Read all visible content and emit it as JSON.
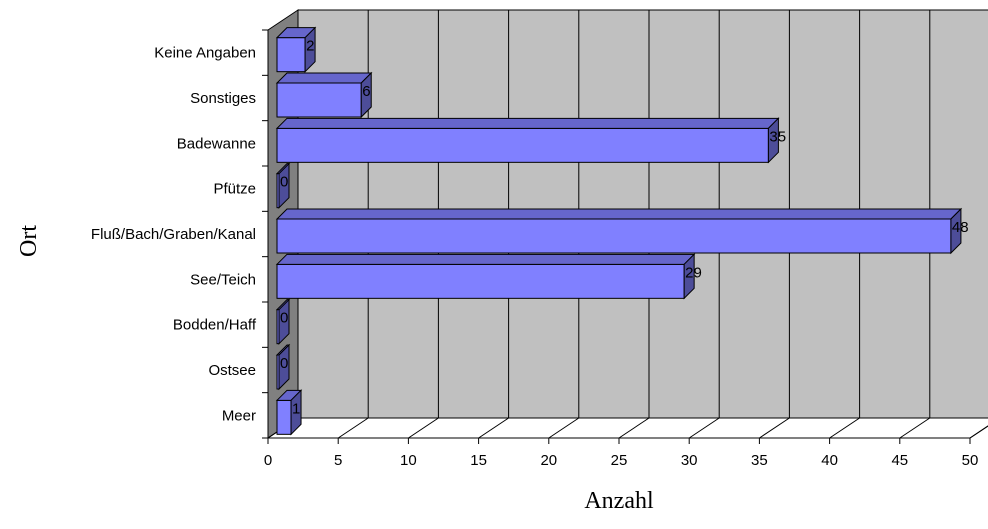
{
  "chart_data": {
    "type": "bar",
    "orientation": "horizontal",
    "three_d": true,
    "categories": [
      "Meer",
      "Ostsee",
      "Bodden/Haff",
      "See/Teich",
      "Fluß/Bach/Graben/Kanal",
      "Pfütze",
      "Badewanne",
      "Sonstiges",
      "Keine Angaben"
    ],
    "values": [
      1,
      0,
      0,
      29,
      48,
      0,
      35,
      6,
      2
    ],
    "data_labels": [
      "1",
      "0",
      "0",
      "29",
      "48",
      "0",
      "35",
      "6",
      "2"
    ],
    "xlabel": "Anzahl",
    "ylabel": "Ort",
    "xlim": [
      0,
      50
    ],
    "x_ticks": [
      "0",
      "5",
      "10",
      "15",
      "20",
      "25",
      "30",
      "35",
      "40",
      "45",
      "50"
    ],
    "grid": true,
    "legend": false,
    "colors": {
      "bar_front": "#8080ff",
      "bar_top": "#6666cc",
      "bar_side": "#4d4d99",
      "wall": "#c0c0c0",
      "wall_side": "#808080",
      "floor": "#ffffff"
    }
  }
}
